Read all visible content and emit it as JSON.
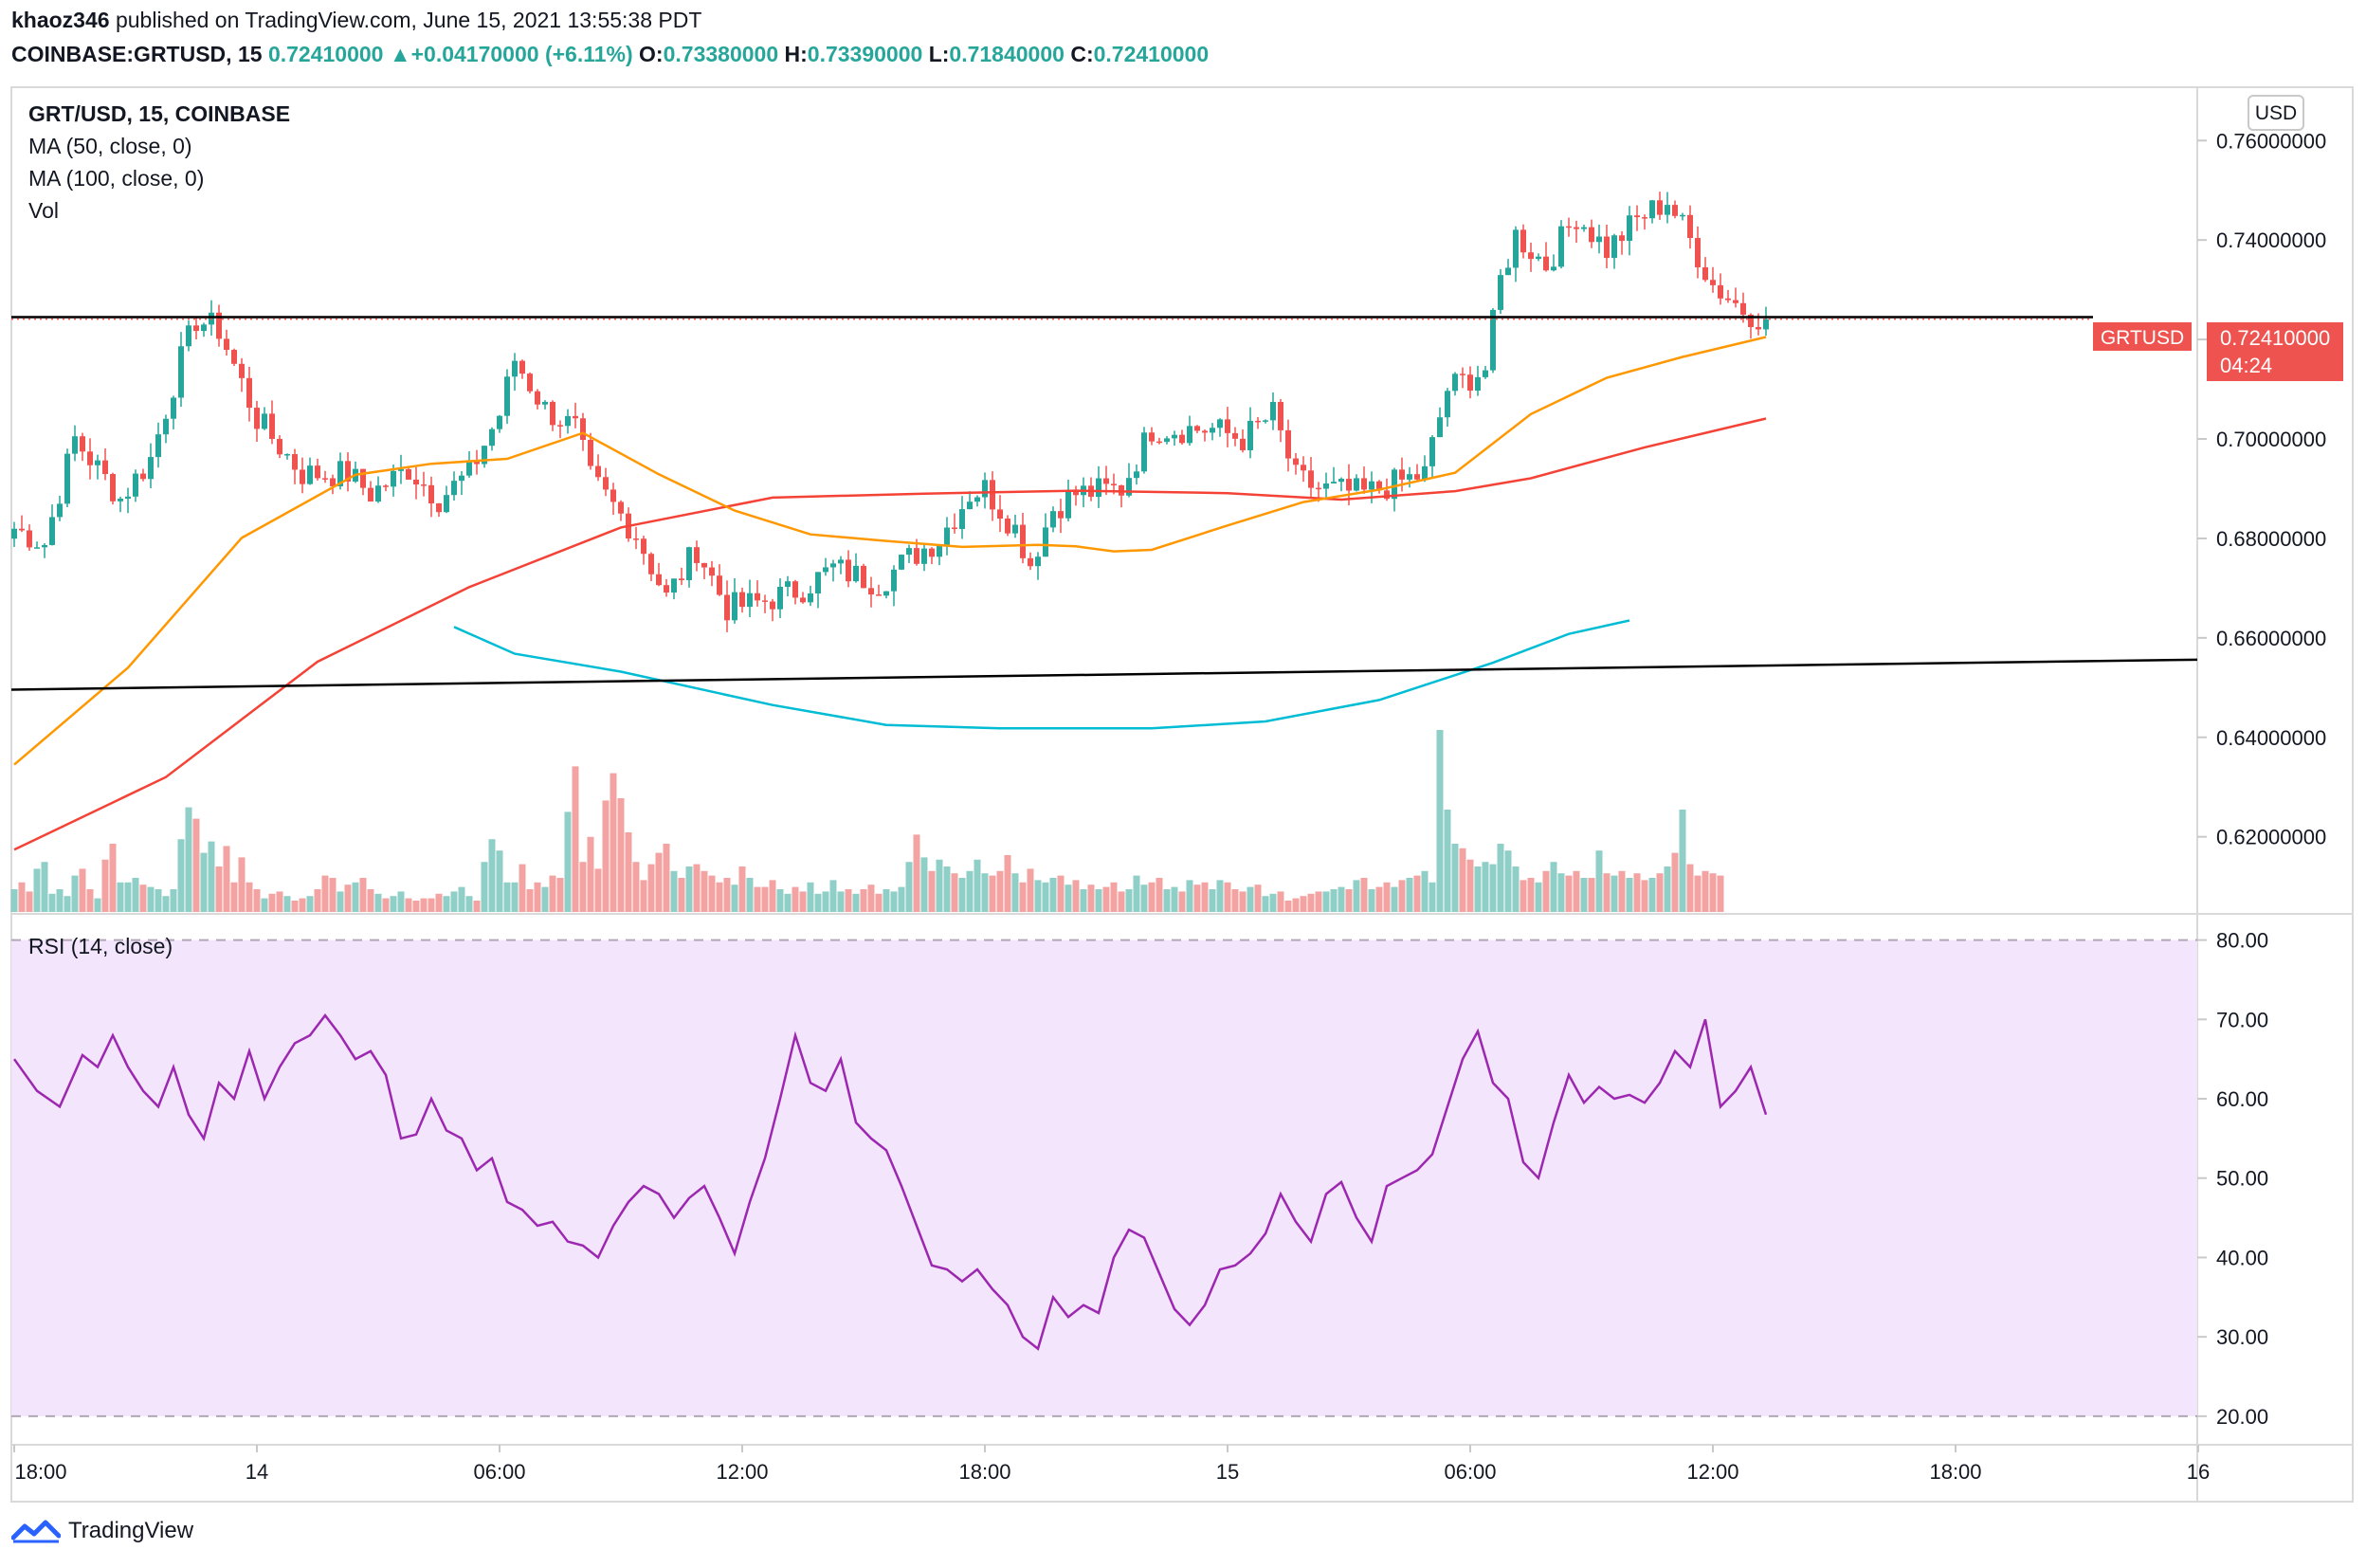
{
  "header": {
    "author": "khaoz346",
    "published_text": "published on TradingView.com, June 15, 2021 13:55:38 PDT",
    "symbol": "COINBASE:GRTUSD, 15",
    "last": "0.72410000",
    "change_arrow": "▲",
    "change": "+0.04170000 (+6.11%)",
    "o_label": "O:",
    "o_value": "0.73380000",
    "h_label": "H:",
    "h_value": "0.73390000",
    "l_label": "L:",
    "l_value": "0.71840000",
    "c_label": "C:",
    "c_value": "0.72410000"
  },
  "legend": {
    "title": "GRT/USD, 15, COINBASE",
    "ma50": "MA (50, close, 0)",
    "ma100": "MA (100, close, 0)",
    "vol": "Vol"
  },
  "currency_button": "USD",
  "price_tag": {
    "symbol": "GRTUSD",
    "price": "0.72410000",
    "countdown": "04:24"
  },
  "rsi_legend": "RSI (14, close)",
  "branding": "TradingView",
  "colors": {
    "up": "#26a69a",
    "down": "#ef5350",
    "vol_up": "#8fcfc7",
    "vol_down": "#f3a3a1",
    "ma50": "#ff9800",
    "ma100": "#f44336",
    "ma_extra": "#00bcd4",
    "rsi": "#9c27b0",
    "rsi_band": "#f3e5fb",
    "trendline": "#000000"
  },
  "chart_data": {
    "type": "candlestick",
    "title": "GRT/USD, 15, COINBASE",
    "price_axis": {
      "range": [
        0.6045,
        0.7692
      ],
      "ticks": [
        "0.76000000",
        "0.74000000",
        "0.72000000",
        "0.70000000",
        "0.68000000",
        "0.66000000",
        "0.64000000",
        "0.62000000"
      ],
      "tick_values": [
        0.76,
        0.74,
        0.72,
        0.7,
        0.68,
        0.66,
        0.64,
        0.62
      ]
    },
    "time_axis": {
      "labels": [
        "18:00",
        "14",
        "06:00",
        "12:00",
        "18:00",
        "15",
        "06:00",
        "12:00",
        "18:00",
        "16"
      ],
      "label_bars": [
        0,
        32,
        64,
        96,
        128,
        160,
        192,
        224,
        256,
        288
      ]
    },
    "last_price": 0.7241,
    "resistance_level": 0.7245,
    "support_trendline": {
      "from": [
        0,
        0.6496
      ],
      "to": [
        306,
        0.656
      ]
    },
    "ohlc_keyframes": [
      [
        0,
        0.682
      ],
      [
        4,
        0.679
      ],
      [
        8,
        0.7
      ],
      [
        14,
        0.688
      ],
      [
        18,
        0.696
      ],
      [
        22,
        0.716
      ],
      [
        24,
        0.724
      ],
      [
        27,
        0.722
      ],
      [
        32,
        0.704
      ],
      [
        38,
        0.693
      ],
      [
        44,
        0.693
      ],
      [
        47,
        0.689
      ],
      [
        52,
        0.694
      ],
      [
        56,
        0.688
      ],
      [
        60,
        0.693
      ],
      [
        64,
        0.705
      ],
      [
        66,
        0.716
      ],
      [
        70,
        0.706
      ],
      [
        74,
        0.702
      ],
      [
        76,
        0.692
      ],
      [
        82,
        0.681
      ],
      [
        86,
        0.668
      ],
      [
        90,
        0.678
      ],
      [
        94,
        0.666
      ],
      [
        98,
        0.667
      ],
      [
        104,
        0.67
      ],
      [
        108,
        0.674
      ],
      [
        114,
        0.671
      ],
      [
        118,
        0.676
      ],
      [
        122,
        0.68
      ],
      [
        126,
        0.689
      ],
      [
        128,
        0.69
      ],
      [
        132,
        0.682
      ],
      [
        134,
        0.675
      ],
      [
        137,
        0.686
      ],
      [
        140,
        0.689
      ],
      [
        146,
        0.69
      ],
      [
        150,
        0.702
      ],
      [
        154,
        0.702
      ],
      [
        158,
        0.702
      ],
      [
        162,
        0.7
      ],
      [
        166,
        0.705
      ],
      [
        169,
        0.692
      ],
      [
        172,
        0.69
      ],
      [
        178,
        0.689
      ],
      [
        182,
        0.691
      ],
      [
        186,
        0.693
      ],
      [
        189,
        0.71
      ],
      [
        194,
        0.714
      ],
      [
        196,
        0.732
      ],
      [
        198,
        0.741
      ],
      [
        202,
        0.735
      ],
      [
        206,
        0.745
      ],
      [
        210,
        0.738
      ],
      [
        214,
        0.744
      ],
      [
        218,
        0.748
      ],
      [
        221,
        0.74
      ],
      [
        224,
        0.731
      ],
      [
        228,
        0.726
      ],
      [
        231,
        0.724
      ]
    ],
    "ma50": [
      [
        0,
        0.6345
      ],
      [
        15,
        0.654
      ],
      [
        30,
        0.6801
      ],
      [
        45,
        0.6928
      ],
      [
        55,
        0.695
      ],
      [
        65,
        0.696
      ],
      [
        75,
        0.7012
      ],
      [
        85,
        0.6929
      ],
      [
        95,
        0.6856
      ],
      [
        105,
        0.6808
      ],
      [
        115,
        0.6795
      ],
      [
        125,
        0.6783
      ],
      [
        135,
        0.6787
      ],
      [
        140,
        0.6784
      ],
      [
        145,
        0.6774
      ],
      [
        150,
        0.6777
      ],
      [
        160,
        0.6826
      ],
      [
        170,
        0.6873
      ],
      [
        180,
        0.6898
      ],
      [
        190,
        0.6932
      ],
      [
        200,
        0.705
      ],
      [
        210,
        0.7123
      ],
      [
        220,
        0.7165
      ],
      [
        231,
        0.7205
      ]
    ],
    "ma100": [
      [
        0,
        0.6174
      ],
      [
        20,
        0.632
      ],
      [
        40,
        0.6552
      ],
      [
        60,
        0.6702
      ],
      [
        80,
        0.6822
      ],
      [
        100,
        0.6882
      ],
      [
        120,
        0.689
      ],
      [
        140,
        0.6896
      ],
      [
        160,
        0.6891
      ],
      [
        175,
        0.6878
      ],
      [
        190,
        0.6895
      ],
      [
        200,
        0.6921
      ],
      [
        215,
        0.6983
      ],
      [
        231,
        0.7041
      ]
    ],
    "ma_extra": [
      [
        58,
        0.6622
      ],
      [
        66,
        0.6568
      ],
      [
        80,
        0.6532
      ],
      [
        100,
        0.6465
      ],
      [
        115,
        0.6425
      ],
      [
        130,
        0.6418
      ],
      [
        150,
        0.6418
      ],
      [
        165,
        0.6432
      ],
      [
        180,
        0.6475
      ],
      [
        195,
        0.655
      ],
      [
        205,
        0.6608
      ],
      [
        213,
        0.6635
      ]
    ],
    "volume_axis": {
      "max": 10.0
    },
    "volume": [
      1.0,
      1.3,
      0.9,
      1.9,
      2.2,
      0.8,
      1.0,
      0.7,
      1.6,
      1.9,
      1.0,
      0.6,
      2.3,
      3.0,
      1.3,
      1.3,
      1.5,
      1.2,
      1.1,
      1.0,
      0.7,
      1.0,
      3.2,
      4.6,
      4.1,
      2.6,
      3.1,
      2.0,
      2.9,
      1.3,
      2.4,
      1.3,
      1.0,
      0.6,
      0.8,
      0.9,
      0.7,
      0.5,
      0.6,
      0.7,
      1.0,
      1.6,
      1.5,
      0.9,
      1.2,
      1.3,
      1.5,
      1.0,
      0.8,
      0.6,
      0.7,
      0.9,
      0.6,
      0.5,
      0.6,
      0.6,
      0.8,
      0.7,
      0.9,
      1.1,
      0.7,
      0.5,
      2.2,
      3.2,
      2.7,
      1.3,
      1.3,
      2.1,
      1.0,
      1.3,
      1.1,
      1.6,
      1.5,
      4.4,
      6.4,
      2.2,
      3.3,
      1.9,
      4.9,
      6.1,
      5.0,
      3.5,
      2.2,
      1.4,
      2.1,
      2.6,
      3.0,
      1.8,
      1.5,
      2.0,
      2.1,
      1.8,
      1.6,
      1.3,
      1.5,
      1.2,
      2.0,
      1.5,
      1.1,
      1.1,
      1.4,
      1.0,
      0.8,
      1.1,
      0.9,
      1.3,
      0.8,
      0.9,
      1.4,
      0.9,
      1.0,
      0.8,
      1.0,
      1.2,
      0.8,
      1.0,
      0.9,
      1.1,
      2.2,
      3.4,
      2.4,
      1.8,
      2.3,
      2.0,
      1.7,
      1.5,
      1.8,
      2.3,
      1.7,
      1.6,
      1.8,
      2.5,
      1.7,
      1.3,
      1.9,
      1.4,
      1.3,
      1.5,
      1.6,
      1.2,
      1.4,
      1.0,
      1.2,
      1.0,
      1.1,
      1.3,
      0.9,
      1.0,
      1.6,
      1.2,
      1.3,
      1.5,
      1.0,
      1.1,
      0.9,
      1.4,
      1.2,
      1.3,
      1.0,
      1.4,
      1.3,
      1.0,
      0.9,
      1.1,
      1.2,
      0.7,
      0.8,
      0.9,
      0.5,
      0.6,
      0.7,
      0.8,
      0.9,
      0.9,
      1.0,
      1.1,
      1.0,
      1.4,
      1.5,
      1.0,
      1.1,
      1.3,
      1.1,
      1.4,
      1.5,
      1.6,
      1.8,
      1.3,
      8.0,
      4.5,
      3.0,
      2.8,
      2.3,
      2.0,
      2.2,
      2.1,
      3.0,
      2.7,
      2.0,
      1.4,
      1.5,
      1.3,
      1.8,
      2.2,
      1.7,
      1.6,
      1.8,
      1.5,
      1.5,
      2.7,
      1.7,
      1.6,
      1.8,
      1.5,
      1.7,
      1.4,
      1.5,
      1.7,
      2.0,
      2.6,
      4.5,
      2.1,
      1.6,
      1.8,
      1.7,
      1.6
    ],
    "rsi": {
      "range": [
        16.4,
        83.3
      ],
      "ticks": [
        "80.00",
        "70.00",
        "60.00",
        "50.00",
        "40.00",
        "30.00",
        "20.00"
      ],
      "tick_values": [
        80,
        70,
        60,
        50,
        40,
        30,
        20
      ],
      "band": [
        20,
        80
      ],
      "values": [
        [
          0,
          65.0
        ],
        [
          3,
          61.0
        ],
        [
          6,
          59.0
        ],
        [
          9,
          65.5
        ],
        [
          11,
          64.0
        ],
        [
          13,
          68.0
        ],
        [
          15,
          64.0
        ],
        [
          17,
          61.0
        ],
        [
          19,
          59.0
        ],
        [
          21,
          64.0
        ],
        [
          23,
          58.0
        ],
        [
          25,
          55.0
        ],
        [
          27,
          62.0
        ],
        [
          29,
          60.0
        ],
        [
          31,
          66.0
        ],
        [
          33,
          60.0
        ],
        [
          35,
          64.0
        ],
        [
          37,
          67.0
        ],
        [
          39,
          68.0
        ],
        [
          41,
          70.5
        ],
        [
          43,
          68.0
        ],
        [
          45,
          65.0
        ],
        [
          47,
          66.0
        ],
        [
          49,
          63.0
        ],
        [
          51,
          55.0
        ],
        [
          53,
          55.5
        ],
        [
          55,
          60.0
        ],
        [
          57,
          56.0
        ],
        [
          59,
          55.0
        ],
        [
          61,
          51.0
        ],
        [
          63,
          52.5
        ],
        [
          65,
          47.0
        ],
        [
          67,
          46.0
        ],
        [
          69,
          44.0
        ],
        [
          71,
          44.5
        ],
        [
          73,
          42.0
        ],
        [
          75,
          41.5
        ],
        [
          77,
          40.0
        ],
        [
          79,
          44.0
        ],
        [
          81,
          47.0
        ],
        [
          83,
          49.0
        ],
        [
          85,
          48.0
        ],
        [
          87,
          45.0
        ],
        [
          89,
          47.5
        ],
        [
          91,
          49.0
        ],
        [
          93,
          45.0
        ],
        [
          95,
          40.5
        ],
        [
          97,
          47.0
        ],
        [
          99,
          52.5
        ],
        [
          101,
          60.0
        ],
        [
          103,
          68.0
        ],
        [
          105,
          62.0
        ],
        [
          107,
          61.0
        ],
        [
          109,
          65.0
        ],
        [
          111,
          57.0
        ],
        [
          113,
          55.0
        ],
        [
          115,
          53.5
        ],
        [
          117,
          49.0
        ],
        [
          119,
          44.0
        ],
        [
          121,
          39.0
        ],
        [
          123,
          38.5
        ],
        [
          125,
          37.0
        ],
        [
          127,
          38.5
        ],
        [
          129,
          36.0
        ],
        [
          131,
          34.0
        ],
        [
          133,
          30.0
        ],
        [
          135,
          28.5
        ],
        [
          137,
          35.0
        ],
        [
          139,
          32.5
        ],
        [
          141,
          34.0
        ],
        [
          143,
          33.0
        ],
        [
          145,
          40.0
        ],
        [
          147,
          43.5
        ],
        [
          149,
          42.5
        ],
        [
          151,
          38.0
        ],
        [
          153,
          33.5
        ],
        [
          155,
          31.5
        ],
        [
          157,
          34.0
        ],
        [
          159,
          38.5
        ],
        [
          161,
          39.0
        ],
        [
          163,
          40.5
        ],
        [
          165,
          43.0
        ],
        [
          167,
          48.0
        ],
        [
          169,
          44.5
        ],
        [
          171,
          42.0
        ],
        [
          173,
          48.0
        ],
        [
          175,
          49.5
        ],
        [
          177,
          45.0
        ],
        [
          179,
          42.0
        ],
        [
          181,
          49.0
        ],
        [
          183,
          50.0
        ],
        [
          185,
          51.0
        ],
        [
          187,
          53.0
        ],
        [
          189,
          59.0
        ],
        [
          191,
          65.0
        ],
        [
          193,
          68.5
        ],
        [
          195,
          62.0
        ],
        [
          197,
          60.0
        ],
        [
          199,
          52.0
        ],
        [
          201,
          50.0
        ],
        [
          203,
          57.0
        ],
        [
          205,
          63.0
        ],
        [
          207,
          59.5
        ],
        [
          209,
          61.5
        ],
        [
          211,
          60.0
        ],
        [
          213,
          60.5
        ],
        [
          215,
          59.5
        ],
        [
          217,
          62.0
        ],
        [
          219,
          66.0
        ],
        [
          221,
          64.0
        ],
        [
          223,
          70.0
        ],
        [
          225,
          59.0
        ],
        [
          227,
          61.0
        ],
        [
          229,
          64.0
        ],
        [
          231,
          58.0
        ]
      ]
    }
  }
}
